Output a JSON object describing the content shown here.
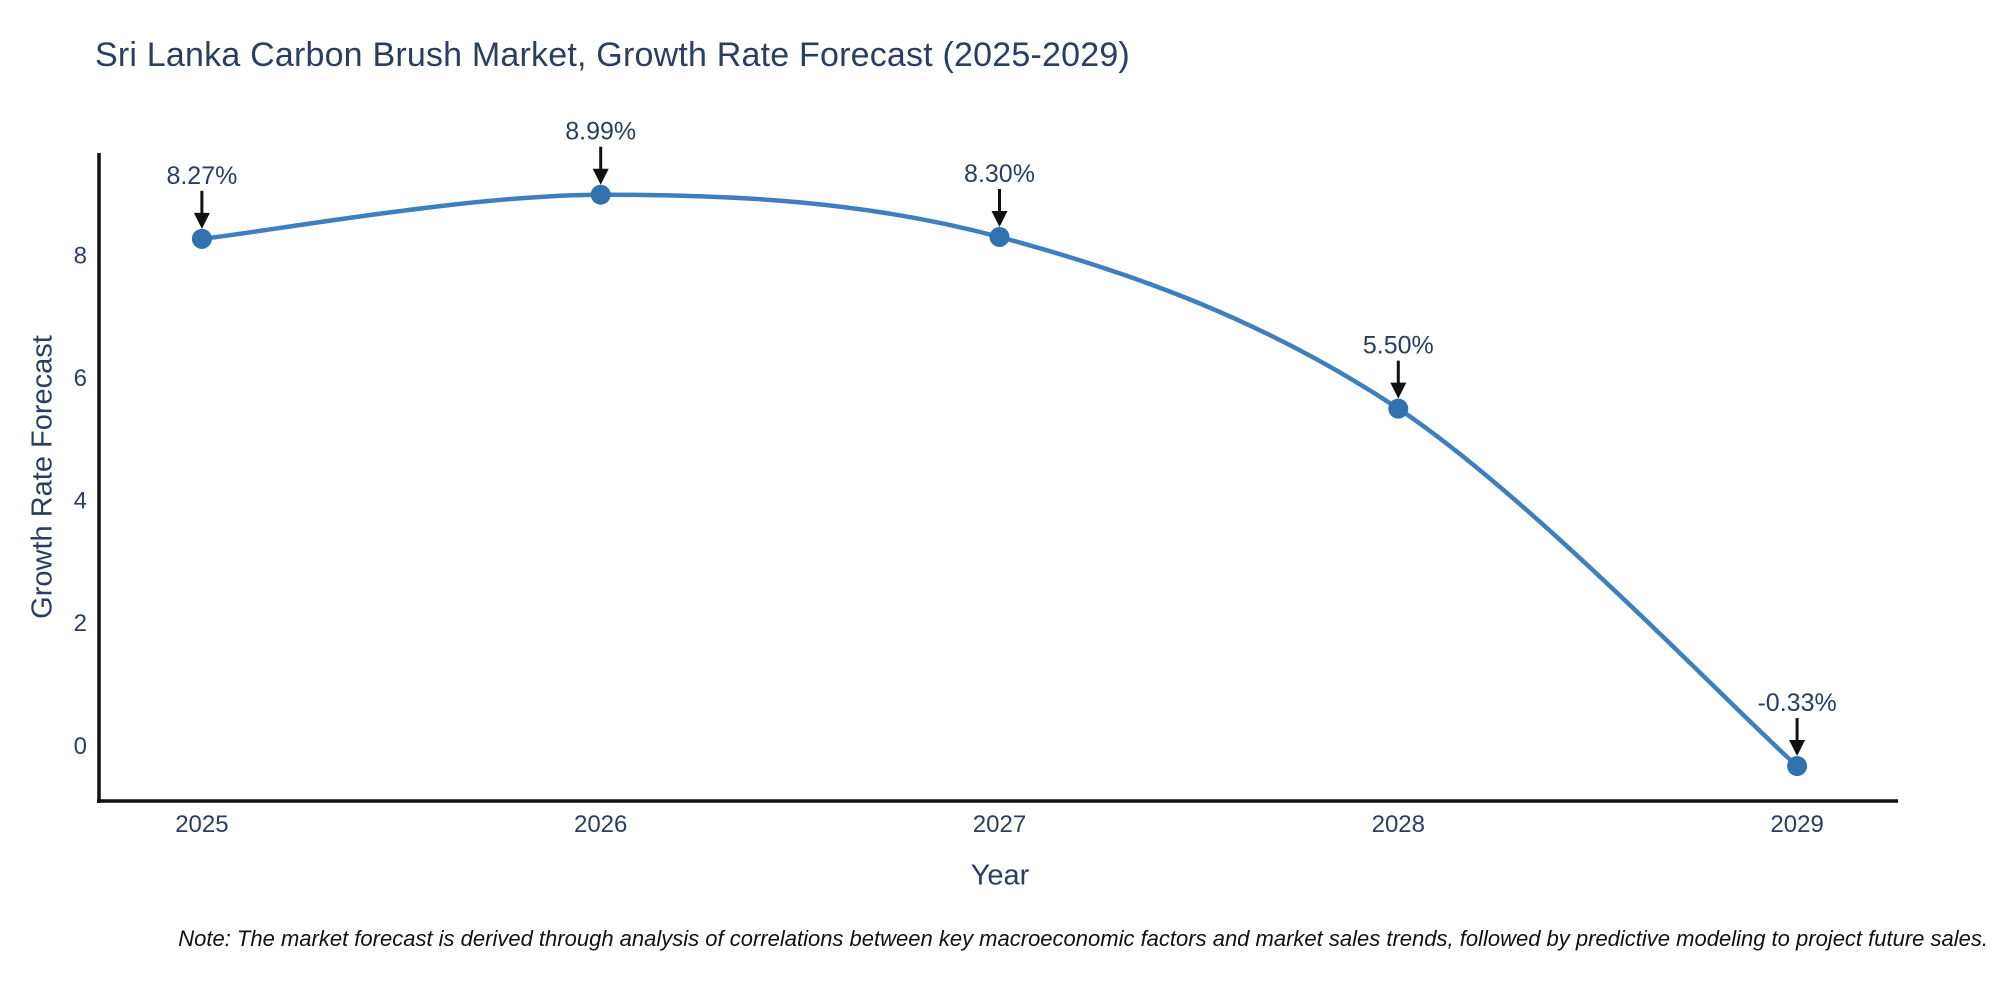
{
  "page": {
    "title": "Sri Lanka Carbon Brush Market, Growth Rate Forecast (2025-2029)",
    "note": "Note: The market forecast is derived through analysis of correlations between key macroeconomic factors and market sales trends, followed by predictive modeling to project future sales."
  },
  "chart_data": {
    "type": "line",
    "title": "Sri Lanka Carbon Brush Market, Growth Rate Forecast (2025-2029)",
    "xlabel": "Year",
    "ylabel": "Growth Rate Forecast",
    "x": [
      2025,
      2026,
      2027,
      2028,
      2029
    ],
    "values": [
      8.27,
      8.99,
      8.3,
      5.5,
      -0.33
    ],
    "point_labels": [
      "8.27%",
      "8.99%",
      "8.30%",
      "5.50%",
      "-0.33%"
    ],
    "series_name": "Growth Rate Forecast",
    "line_shape": "spline",
    "markers": true,
    "grid": false,
    "legend": "none",
    "xticks": [
      "2025",
      "2026",
      "2027",
      "2028",
      "2029"
    ],
    "yticks": [
      0,
      2,
      4,
      6,
      8
    ],
    "xlim": [
      2024.742,
      2029.253
    ],
    "ylim": [
      -0.9,
      9.67
    ],
    "colors": {
      "line": "#3e7fbd",
      "marker": "#2f72ae",
      "axis": "#111111",
      "text": "#2a3f5f",
      "arrow": "#111111",
      "background": "#ffffff"
    }
  }
}
